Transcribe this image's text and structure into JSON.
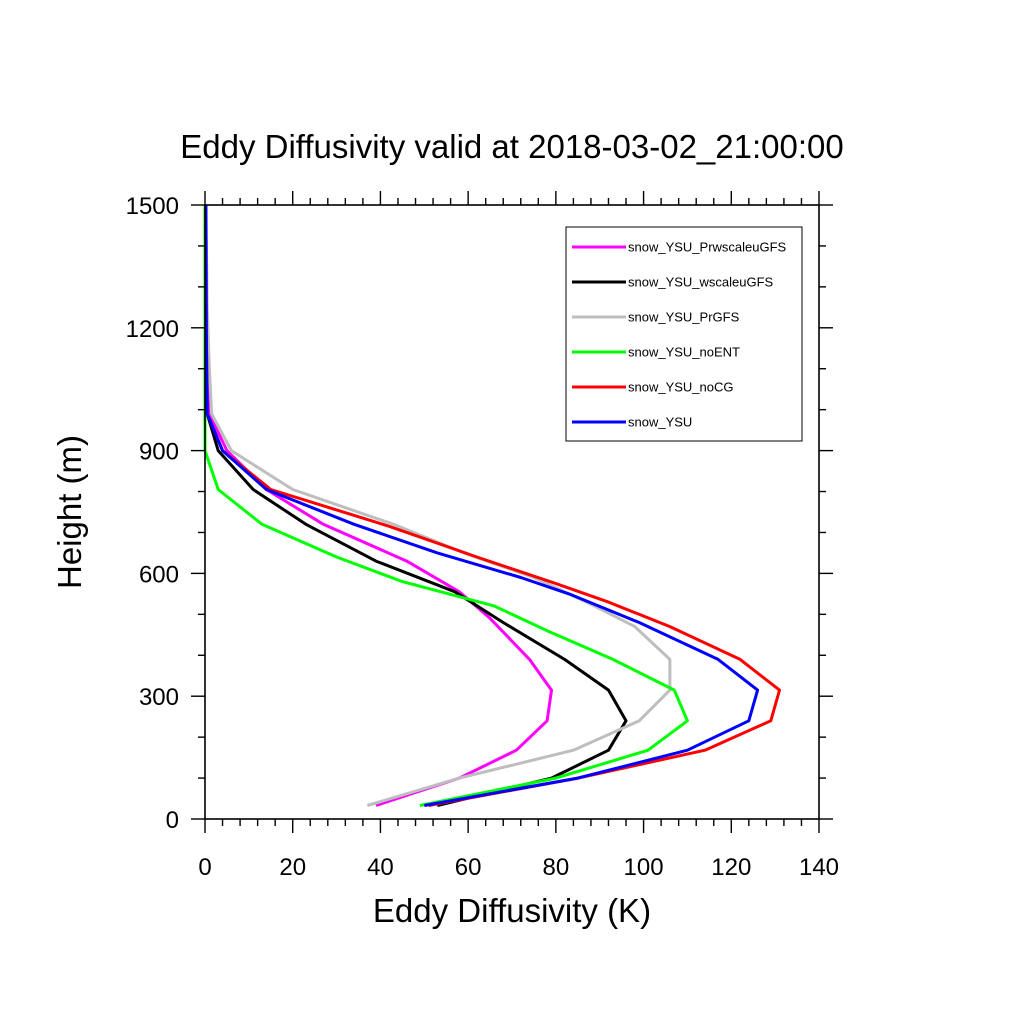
{
  "chart_data": {
    "type": "line",
    "title": "Eddy Diffusivity valid at 2018-03-02_21:00:00",
    "xlabel": "Eddy Diffusivity (K)",
    "ylabel": "Height (m)",
    "xlim": [
      0,
      140
    ],
    "ylim": [
      0,
      1500
    ],
    "xticks": [
      0,
      20,
      40,
      60,
      80,
      100,
      120,
      140
    ],
    "yticks": [
      0,
      300,
      600,
      900,
      1200,
      1500
    ],
    "xtick_labels": [
      "0",
      "20",
      "40",
      "60",
      "80",
      "100",
      "120",
      "140"
    ],
    "ytick_labels": [
      "0",
      "300",
      "600",
      "900",
      "1200",
      "1500"
    ],
    "grid": false,
    "legend_position": "top-right",
    "series": [
      {
        "name": "snow_YSU_PrwscaleuGFS",
        "color": "#ff00ff",
        "points": [
          [
            39,
            33
          ],
          [
            58,
            100
          ],
          [
            71,
            168
          ],
          [
            78,
            240
          ],
          [
            79,
            315
          ],
          [
            74,
            390
          ],
          [
            65,
            490
          ],
          [
            58,
            555
          ],
          [
            46,
            630
          ],
          [
            27,
            720
          ],
          [
            14,
            805
          ],
          [
            5,
            900
          ],
          [
            1,
            990
          ],
          [
            0.5,
            1100
          ],
          [
            0.3,
            1300
          ],
          [
            0.2,
            1500
          ]
        ]
      },
      {
        "name": "snow_YSU_wscaleuGFS",
        "color": "#000000",
        "points": [
          [
            53,
            33
          ],
          [
            79,
            100
          ],
          [
            92,
            168
          ],
          [
            96,
            240
          ],
          [
            92,
            315
          ],
          [
            82,
            390
          ],
          [
            68,
            480
          ],
          [
            57,
            555
          ],
          [
            39,
            630
          ],
          [
            23,
            720
          ],
          [
            11,
            805
          ],
          [
            3,
            900
          ],
          [
            0.5,
            990
          ],
          [
            0.3,
            1200
          ],
          [
            0.2,
            1500
          ]
        ]
      },
      {
        "name": "snow_YSU_PrGFS",
        "color": "#bebebe",
        "points": [
          [
            37,
            33
          ],
          [
            58,
            100
          ],
          [
            84,
            168
          ],
          [
            99,
            240
          ],
          [
            106,
            315
          ],
          [
            106,
            390
          ],
          [
            98,
            470
          ],
          [
            87,
            530
          ],
          [
            75,
            590
          ],
          [
            59,
            650
          ],
          [
            43,
            720
          ],
          [
            20,
            805
          ],
          [
            6,
            900
          ],
          [
            1.5,
            990
          ],
          [
            1,
            1100
          ],
          [
            0.5,
            1250
          ],
          [
            0.2,
            1500
          ]
        ]
      },
      {
        "name": "snow_YSU_noENT",
        "color": "#00ff00",
        "points": [
          [
            49,
            33
          ],
          [
            80,
            100
          ],
          [
            101,
            168
          ],
          [
            110,
            240
          ],
          [
            107,
            315
          ],
          [
            93,
            390
          ],
          [
            78,
            460
          ],
          [
            66,
            520
          ],
          [
            45,
            580
          ],
          [
            30,
            640
          ],
          [
            13,
            720
          ],
          [
            3,
            805
          ],
          [
            0,
            900
          ],
          [
            0,
            1000
          ],
          [
            0,
            1500
          ]
        ]
      },
      {
        "name": "snow_YSU_noCG",
        "color": "#ff0000",
        "points": [
          [
            51,
            33
          ],
          [
            85,
            100
          ],
          [
            114,
            168
          ],
          [
            129,
            240
          ],
          [
            131,
            315
          ],
          [
            122,
            390
          ],
          [
            106,
            470
          ],
          [
            92,
            530
          ],
          [
            80,
            575
          ],
          [
            62,
            640
          ],
          [
            42,
            715
          ],
          [
            15,
            805
          ],
          [
            4,
            900
          ],
          [
            0.5,
            990
          ],
          [
            0.3,
            1200
          ],
          [
            0.2,
            1500
          ]
        ]
      },
      {
        "name": "snow_YSU",
        "color": "#0000ff",
        "points": [
          [
            50,
            33
          ],
          [
            85,
            100
          ],
          [
            110,
            168
          ],
          [
            124,
            240
          ],
          [
            126,
            315
          ],
          [
            117,
            390
          ],
          [
            99,
            480
          ],
          [
            83,
            550
          ],
          [
            72,
            590
          ],
          [
            53,
            650
          ],
          [
            34,
            720
          ],
          [
            14,
            805
          ],
          [
            4,
            900
          ],
          [
            0.5,
            990
          ],
          [
            0.3,
            1200
          ],
          [
            0.2,
            1500
          ]
        ]
      }
    ]
  }
}
